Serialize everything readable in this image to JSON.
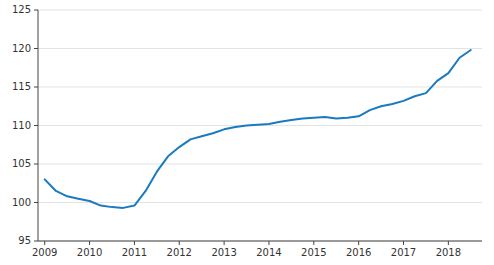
{
  "chart_data": {
    "type": "line",
    "x": [
      2009.0,
      2009.25,
      2009.5,
      2009.75,
      2010.0,
      2010.25,
      2010.5,
      2010.75,
      2011.0,
      2011.25,
      2011.5,
      2011.75,
      2012.0,
      2012.25,
      2012.5,
      2012.75,
      2013.0,
      2013.25,
      2013.5,
      2013.75,
      2014.0,
      2014.25,
      2014.5,
      2014.75,
      2015.0,
      2015.25,
      2015.5,
      2015.75,
      2016.0,
      2016.25,
      2016.5,
      2016.75,
      2017.0,
      2017.25,
      2017.5,
      2017.75,
      2018.0,
      2018.25,
      2018.5
    ],
    "values": [
      103.0,
      101.5,
      100.8,
      100.5,
      100.2,
      99.6,
      99.4,
      99.3,
      99.6,
      101.5,
      104.0,
      106.0,
      107.2,
      108.2,
      108.6,
      109.0,
      109.5,
      109.8,
      110.0,
      110.1,
      110.2,
      110.5,
      110.7,
      110.9,
      111.0,
      111.1,
      110.9,
      111.0,
      111.2,
      112.0,
      112.5,
      112.8,
      113.2,
      113.8,
      114.2,
      115.8,
      116.8,
      118.8,
      119.8
    ],
    "color": "#1a7abf",
    "xlim": [
      2008.85,
      2018.75
    ],
    "xticks": [
      2009,
      2010,
      2011,
      2012,
      2013,
      2014,
      2015,
      2016,
      2017,
      2018
    ],
    "ylim": [
      95,
      125
    ],
    "yticks": [
      95,
      100,
      105,
      110,
      115,
      120,
      125
    ],
    "grid": true
  }
}
